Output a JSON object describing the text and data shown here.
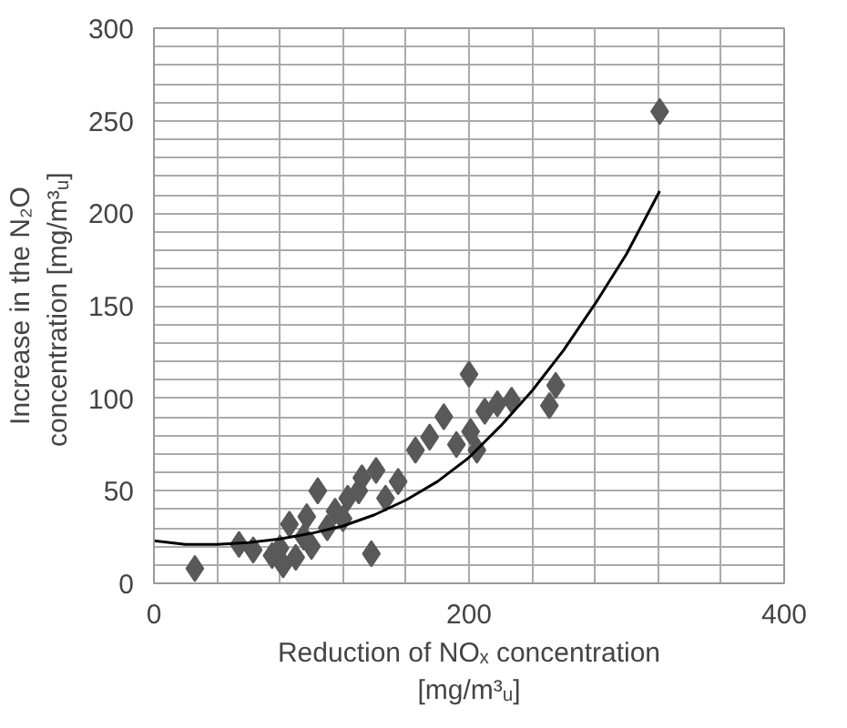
{
  "chart_data": {
    "type": "scatter",
    "xlabel": "Reduction of NOₓ concentration\n[mg/m³ᵤ]",
    "ylabel": "Increase in the N₂O\nconcentration  [mg/m³ᵤ]",
    "marker": "diamond",
    "grid": true,
    "xlim": [
      0,
      400
    ],
    "ylim": [
      0,
      300
    ],
    "xticks": [
      0,
      {
        "value": 40,
        "label": null
      },
      {
        "value": 80,
        "label": null
      },
      {
        "value": 120,
        "label": null
      },
      {
        "value": 160,
        "label": null
      },
      200,
      {
        "value": 240,
        "label": null
      },
      {
        "value": 280,
        "label": null
      },
      {
        "value": 320,
        "label": null
      },
      {
        "value": 360,
        "label": null
      },
      400
    ],
    "yticks": [
      0,
      {
        "value": 10,
        "label": null
      },
      {
        "value": 20,
        "label": null
      },
      {
        "value": 30,
        "label": null
      },
      {
        "value": 40,
        "label": null
      },
      50,
      {
        "value": 60,
        "label": null
      },
      {
        "value": 70,
        "label": null
      },
      {
        "value": 80,
        "label": null
      },
      {
        "value": 90,
        "label": null
      },
      100,
      {
        "value": 110,
        "label": null
      },
      {
        "value": 120,
        "label": null
      },
      {
        "value": 130,
        "label": null
      },
      {
        "value": 140,
        "label": null
      },
      150,
      {
        "value": 160,
        "label": null
      },
      {
        "value": 170,
        "label": null
      },
      {
        "value": 180,
        "label": null
      },
      {
        "value": 190,
        "label": null
      },
      200,
      {
        "value": 210,
        "label": null
      },
      {
        "value": 220,
        "label": null
      },
      {
        "value": 230,
        "label": null
      },
      {
        "value": 240,
        "label": null
      },
      250,
      {
        "value": 260,
        "label": null
      },
      {
        "value": 270,
        "label": null
      },
      {
        "value": 280,
        "label": null
      },
      {
        "value": 290,
        "label": null
      },
      300
    ],
    "series": [
      {
        "color": "#595959",
        "x": [
          26,
          54,
          63,
          75,
          80,
          82,
          86,
          90,
          95,
          97,
          100,
          104,
          110,
          115,
          120,
          123,
          130,
          132,
          138,
          141,
          147,
          155,
          166,
          175,
          184,
          192,
          200,
          201,
          205,
          210,
          218,
          227,
          251,
          255,
          321
        ],
        "values": [
          8,
          21,
          18,
          15,
          19,
          10,
          32,
          14,
          25,
          36,
          20,
          50,
          30,
          39,
          35,
          46,
          50,
          57,
          16,
          61,
          46,
          55,
          72,
          79,
          90,
          75,
          113,
          82,
          72,
          93,
          97,
          99,
          96,
          107,
          255
        ]
      },
      {
        "type": "line",
        "color": "#000000",
        "marker": "none",
        "x": [
          0,
          20,
          40,
          60,
          80,
          100,
          120,
          140,
          160,
          180,
          200,
          220,
          240,
          260,
          280,
          300,
          321
        ],
        "values": [
          23,
          21,
          21,
          22,
          24,
          27,
          31,
          37,
          45,
          55,
          68,
          85,
          104,
          126,
          151,
          178,
          212
        ]
      }
    ]
  }
}
